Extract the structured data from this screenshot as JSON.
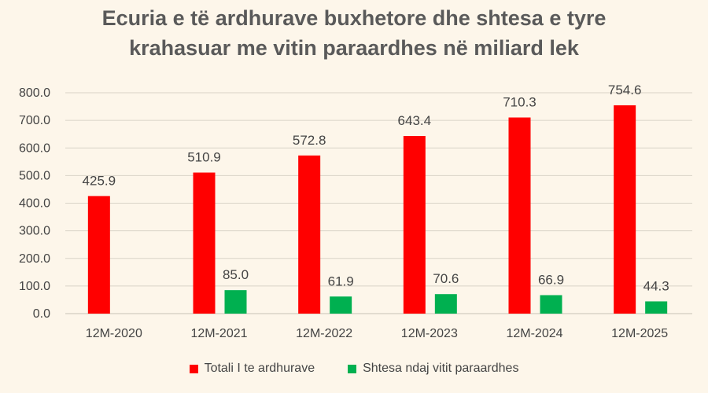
{
  "title_line1": "Ecuria e të ardhurave buxhetore dhe shtesa e tyre",
  "title_line2": "krahasuar me vitin paraardhes në miliard lek",
  "colors": {
    "total": "#ff0000",
    "increase": "#00b050",
    "gridline": "#d9d3c7",
    "background": "#fdf6ea"
  },
  "chart_data": {
    "type": "bar",
    "categories": [
      "12M-2020",
      "12M-2021",
      "12M-2022",
      "12M-2023",
      "12M-2024",
      "12M-2025"
    ],
    "series": [
      {
        "name": "Totali I te ardhurave",
        "values": [
          425.9,
          510.9,
          572.8,
          643.4,
          710.3,
          754.6
        ],
        "labels": [
          "425.9",
          "510.9",
          "572.8",
          "643.4",
          "710.3",
          "754.6"
        ]
      },
      {
        "name": "Shtesa ndaj vitit paraardhes",
        "values": [
          null,
          85.0,
          61.9,
          70.6,
          66.9,
          44.3
        ],
        "labels": [
          null,
          "85.0",
          "61.9",
          "70.6",
          "66.9",
          "44.3"
        ]
      }
    ],
    "yticks": [
      "0.0",
      "100.0",
      "200.0",
      "300.0",
      "400.0",
      "500.0",
      "600.0",
      "700.0",
      "800.0"
    ],
    "ylim": [
      0,
      800
    ],
    "grid": true,
    "legend_position": "bottom"
  }
}
